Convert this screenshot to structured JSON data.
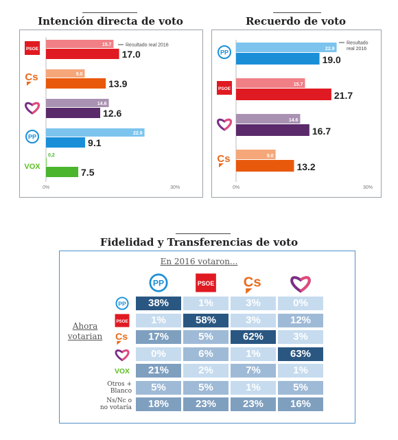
{
  "chart_data": [
    {
      "type": "bar",
      "title": "Intención directa de voto",
      "note": "Resultado real 2016",
      "axis_min_label": "0%",
      "axis_max_label": "30%",
      "xlim": [
        0,
        30
      ],
      "categories": [
        "PSOE",
        "Cs",
        "Podemos",
        "PP",
        "VOX"
      ],
      "series": [
        {
          "name": "Resultado real 2016",
          "values": [
            15.7,
            9.0,
            14.6,
            22.9,
            0.2
          ],
          "labels": [
            "15.7",
            "9.0",
            "14.6",
            "22.9",
            "0,2"
          ]
        },
        {
          "name": "",
          "values": [
            17.0,
            13.9,
            12.6,
            9.1,
            7.5
          ],
          "labels": [
            "17.0",
            "13.9",
            "12.6",
            "9.1",
            "7.5"
          ]
        }
      ],
      "colors_light": [
        "#f07f86",
        "#f5a77a",
        "#a991b2",
        "#7cc4ee",
        "#8ad36a"
      ],
      "colors_dark": [
        "#e01a22",
        "#e8590c",
        "#5a2a6a",
        "#1a8fd8",
        "#4ab52d"
      ]
    },
    {
      "type": "bar",
      "title": "Recuerdo de voto",
      "note_line1": "Resultado",
      "note_line2": "real 2016",
      "axis_min_label": "0%",
      "axis_max_label": "30%",
      "xlim": [
        0,
        30
      ],
      "categories": [
        "PP",
        "PSOE",
        "Podemos",
        "Cs"
      ],
      "series": [
        {
          "name": "Resultado real 2016",
          "values": [
            22.9,
            15.7,
            14.6,
            9.0
          ],
          "labels": [
            "22.9",
            "15.7",
            "14.6",
            "9.0"
          ]
        },
        {
          "name": "",
          "values": [
            19.0,
            21.7,
            16.7,
            13.2
          ],
          "labels": [
            "19.0",
            "21.7",
            "16.7",
            "13.2"
          ]
        }
      ],
      "colors_light": [
        "#7cc4ee",
        "#f07f86",
        "#a991b2",
        "#f5a77a"
      ],
      "colors_dark": [
        "#1a8fd8",
        "#e01a22",
        "#5a2a6a",
        "#e8590c"
      ]
    },
    {
      "type": "heatmap",
      "title": "Fidelidad y Transferencias de voto",
      "col_header": "En 2016 votaron...",
      "row_header_line1": "Ahora",
      "row_header_line2": "votarian",
      "columns": [
        "PP",
        "PSOE",
        "Cs",
        "Podemos"
      ],
      "rows": [
        "PP",
        "PSOE",
        "Cs",
        "Podemos",
        "VOX",
        "Otros + Blanco",
        "Ns/Nc o no votaría"
      ],
      "row_text_labels": {
        "5": [
          "Otros +",
          "Blanco"
        ],
        "6": [
          "Ns/Nc o",
          "no votaría"
        ]
      },
      "values": [
        [
          38,
          1,
          3,
          0
        ],
        [
          1,
          58,
          3,
          12
        ],
        [
          17,
          5,
          62,
          3
        ],
        [
          0,
          6,
          1,
          63
        ],
        [
          21,
          2,
          7,
          1
        ],
        [
          5,
          5,
          1,
          5
        ],
        [
          18,
          23,
          23,
          16
        ]
      ]
    }
  ],
  "logos": {
    "psoe_text": "PSOE",
    "cs_text": "Cs",
    "pp_text": "PP",
    "vox_text": "VOX"
  }
}
